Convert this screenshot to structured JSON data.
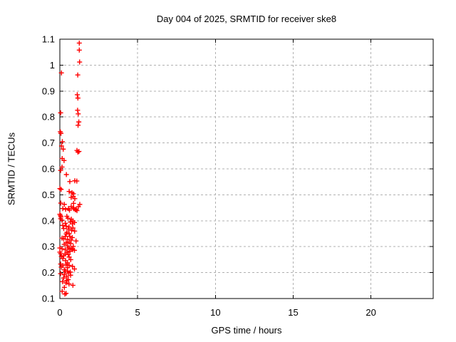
{
  "chart_data": {
    "type": "scatter",
    "title": "Day 004 of 2025, SRMTID for receiver ske8",
    "xlabel": "GPS time / hours",
    "ylabel": "SRMTID / TECUs",
    "xlim": [
      0,
      24
    ],
    "ylim": [
      0.1,
      1.1
    ],
    "xticks": {
      "values": [
        0,
        5,
        10,
        15,
        20
      ],
      "labels": [
        "0",
        "5",
        "10",
        "15",
        "20"
      ]
    },
    "yticks": {
      "values": [
        0.1,
        0.2,
        0.3,
        0.4,
        0.5,
        0.6,
        0.7,
        0.8,
        0.9,
        1.0,
        1.1
      ],
      "labels": [
        "0.1",
        "0.2",
        "0.3",
        "0.4",
        "0.5",
        "0.6",
        "0.7",
        "0.8",
        "0.9",
        "1",
        "1.1"
      ]
    },
    "grid": true,
    "grid_color": "#b0b0b0",
    "legend_position": "none",
    "marker": {
      "shape": "plus",
      "color": "#ff0000",
      "size": 7
    },
    "axis_color": "#000000",
    "series": [
      {
        "name": "SRMTID",
        "points": [
          [
            1.25,
            1.085
          ],
          [
            1.25,
            1.058
          ],
          [
            1.27,
            1.012
          ],
          [
            0.1,
            0.97
          ],
          [
            1.15,
            0.962
          ],
          [
            1.12,
            0.886
          ],
          [
            1.16,
            0.873
          ],
          [
            0.05,
            0.816
          ],
          [
            1.14,
            0.826
          ],
          [
            1.18,
            0.812
          ],
          [
            1.22,
            0.781
          ],
          [
            1.17,
            0.768
          ],
          [
            0.03,
            0.743
          ],
          [
            0.07,
            0.737
          ],
          [
            0.16,
            0.705
          ],
          [
            0.11,
            0.688
          ],
          [
            0.22,
            0.676
          ],
          [
            1.1,
            0.671
          ],
          [
            1.16,
            0.665
          ],
          [
            1.23,
            0.667
          ],
          [
            0.15,
            0.64
          ],
          [
            0.27,
            0.632
          ],
          [
            0.14,
            0.607
          ],
          [
            0.05,
            0.594
          ],
          [
            0.42,
            0.578
          ],
          [
            0.64,
            0.551
          ],
          [
            0.96,
            0.554
          ],
          [
            1.09,
            0.553
          ],
          [
            0.0,
            0.524
          ],
          [
            0.08,
            0.521
          ],
          [
            0.6,
            0.513
          ],
          [
            0.78,
            0.508
          ],
          [
            0.87,
            0.504
          ],
          [
            0.86,
            0.494
          ],
          [
            0.73,
            0.49
          ],
          [
            0.96,
            0.485
          ],
          [
            0.06,
            0.468
          ],
          [
            0.29,
            0.463
          ],
          [
            0.88,
            0.467
          ],
          [
            1.28,
            0.463
          ],
          [
            0.73,
            0.455
          ],
          [
            0.87,
            0.45
          ],
          [
            1.05,
            0.444
          ],
          [
            1.19,
            0.454
          ],
          [
            0.19,
            0.447
          ],
          [
            0.37,
            0.444
          ],
          [
            0.55,
            0.447
          ],
          [
            0.62,
            0.441
          ],
          [
            0.9,
            0.446
          ],
          [
            1.0,
            0.442
          ],
          [
            1.1,
            0.439
          ],
          [
            0.0,
            0.425
          ],
          [
            0.04,
            0.42
          ],
          [
            0.07,
            0.415
          ],
          [
            0.05,
            0.408
          ],
          [
            0.45,
            0.417
          ],
          [
            0.52,
            0.41
          ],
          [
            0.14,
            0.402
          ],
          [
            0.68,
            0.395
          ],
          [
            0.74,
            0.406
          ],
          [
            0.84,
            0.399
          ],
          [
            0.94,
            0.393
          ],
          [
            0.81,
            0.388
          ],
          [
            0.35,
            0.39
          ],
          [
            0.19,
            0.382
          ],
          [
            0.41,
            0.379
          ],
          [
            0.59,
            0.376
          ],
          [
            0.84,
            0.372
          ],
          [
            0.25,
            0.37
          ],
          [
            0.55,
            0.368
          ],
          [
            0.75,
            0.363
          ],
          [
            0.95,
            0.36
          ],
          [
            0.45,
            0.355
          ],
          [
            0.6,
            0.35
          ],
          [
            0.41,
            0.349
          ],
          [
            0.35,
            0.34
          ],
          [
            0.64,
            0.34
          ],
          [
            0.8,
            0.335
          ],
          [
            0.14,
            0.333
          ],
          [
            0.25,
            0.33
          ],
          [
            0.49,
            0.328
          ],
          [
            0.72,
            0.325
          ],
          [
            1.04,
            0.322
          ],
          [
            0.6,
            0.318
          ],
          [
            0.4,
            0.315
          ],
          [
            0.7,
            0.312
          ],
          [
            0.28,
            0.309
          ],
          [
            0.49,
            0.303
          ],
          [
            0.86,
            0.301
          ],
          [
            0.0,
            0.295
          ],
          [
            0.14,
            0.292
          ],
          [
            0.55,
            0.295
          ],
          [
            0.64,
            0.291
          ],
          [
            0.75,
            0.292
          ],
          [
            0.82,
            0.289
          ],
          [
            0.94,
            0.286
          ],
          [
            0.35,
            0.288
          ],
          [
            0.0,
            0.279
          ],
          [
            0.05,
            0.273
          ],
          [
            0.34,
            0.272
          ],
          [
            0.54,
            0.27
          ],
          [
            0.65,
            0.282
          ],
          [
            0.45,
            0.278
          ],
          [
            0.1,
            0.262
          ],
          [
            0.25,
            0.265
          ],
          [
            0.19,
            0.254
          ],
          [
            0.6,
            0.26
          ],
          [
            0.37,
            0.246
          ],
          [
            0.49,
            0.238
          ],
          [
            0.7,
            0.25
          ],
          [
            0.05,
            0.233
          ],
          [
            0.4,
            0.232
          ],
          [
            0.19,
            0.227
          ],
          [
            0.6,
            0.228
          ],
          [
            0.49,
            0.219
          ],
          [
            0.81,
            0.224
          ],
          [
            0.09,
            0.221
          ],
          [
            0.94,
            0.214
          ],
          [
            0.29,
            0.211
          ],
          [
            0.35,
            0.205
          ],
          [
            0.49,
            0.206
          ],
          [
            0.67,
            0.202
          ],
          [
            0.55,
            0.198
          ],
          [
            0.05,
            0.196
          ],
          [
            0.29,
            0.192
          ],
          [
            0.44,
            0.185
          ],
          [
            0.69,
            0.19
          ],
          [
            0.24,
            0.179
          ],
          [
            0.54,
            0.173
          ],
          [
            0.45,
            0.17
          ],
          [
            0.17,
            0.165
          ],
          [
            0.39,
            0.16
          ],
          [
            0.59,
            0.156
          ],
          [
            0.84,
            0.151
          ],
          [
            0.29,
            0.143
          ],
          [
            0.15,
            0.128
          ],
          [
            0.4,
            0.12
          ],
          [
            0.32,
            0.117
          ]
        ]
      }
    ]
  }
}
